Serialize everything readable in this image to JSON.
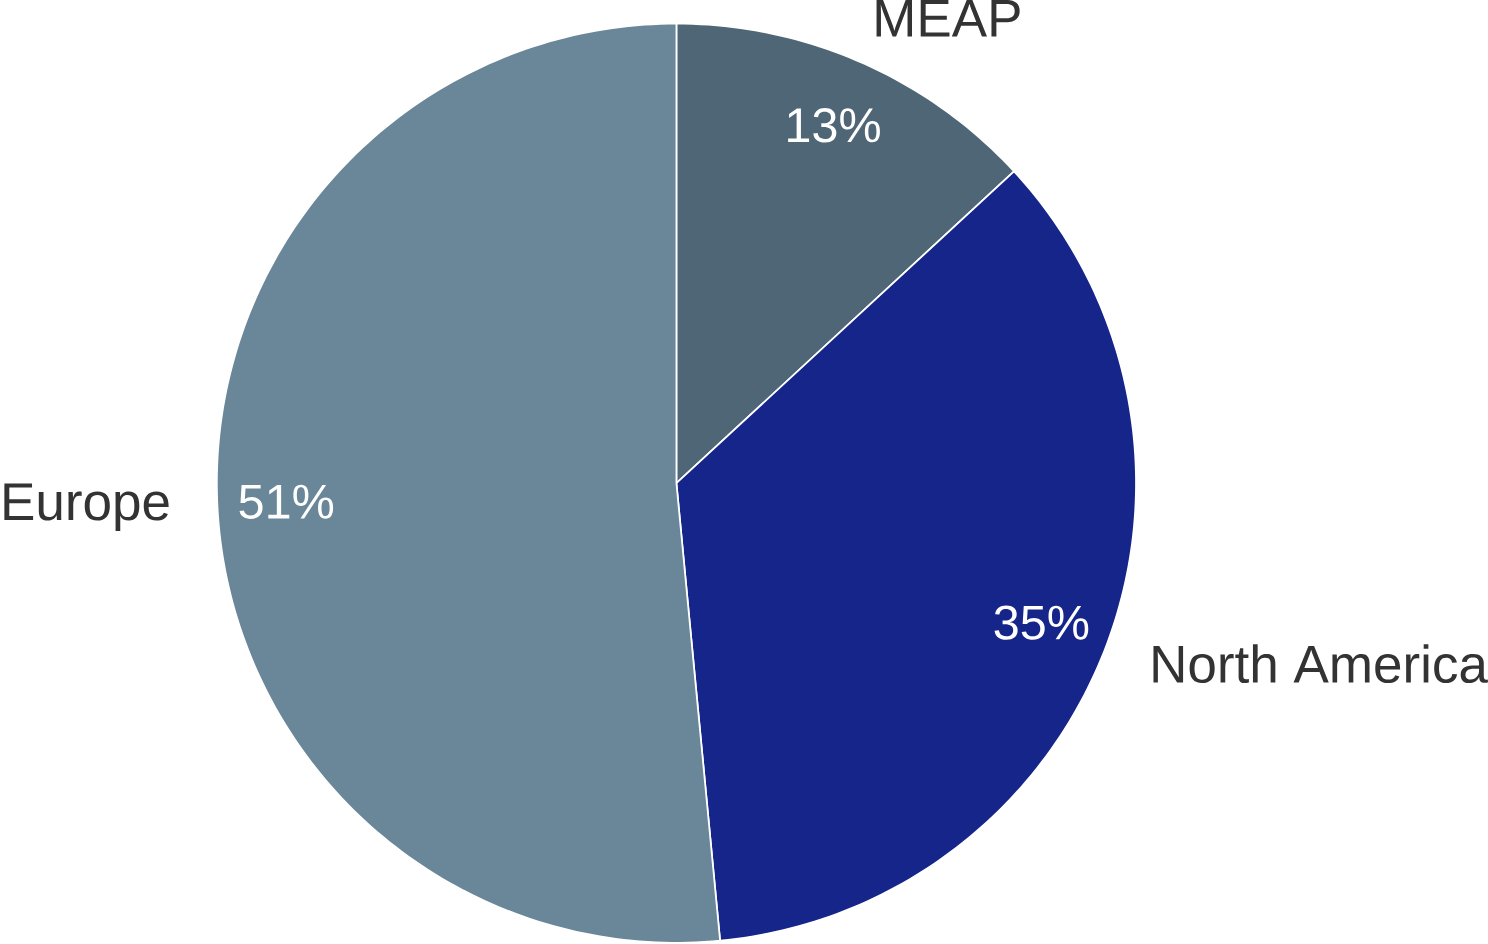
{
  "chart_data": {
    "type": "pie",
    "categories": [
      "MEAP",
      "North America",
      "Europe"
    ],
    "values": [
      13,
      35,
      51
    ],
    "colors": [
      "#4f6677",
      "#15258a",
      "#6a8699"
    ],
    "value_labels": [
      "13%",
      "35%",
      "51%"
    ]
  }
}
